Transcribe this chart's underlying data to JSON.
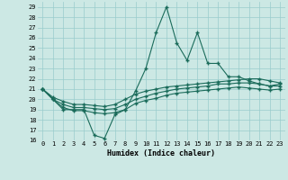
{
  "xlabel": "Humidex (Indice chaleur)",
  "ylabel": "",
  "bg_color": "#cce8e4",
  "grid_color": "#99cccc",
  "line_color": "#1a6b5a",
  "xlim": [
    -0.5,
    23.5
  ],
  "ylim": [
    16,
    29.5
  ],
  "yticks": [
    16,
    17,
    18,
    19,
    20,
    21,
    22,
    23,
    24,
    25,
    26,
    27,
    28,
    29
  ],
  "xticks": [
    0,
    1,
    2,
    3,
    4,
    5,
    6,
    7,
    8,
    9,
    10,
    11,
    12,
    13,
    14,
    15,
    16,
    17,
    18,
    19,
    20,
    21,
    22,
    23
  ],
  "series1": [
    21.0,
    20.0,
    19.0,
    19.0,
    19.0,
    16.5,
    16.2,
    18.5,
    19.0,
    20.8,
    23.0,
    26.5,
    29.0,
    25.5,
    23.8,
    26.5,
    23.5,
    23.5,
    22.2,
    22.2,
    21.8,
    21.5,
    21.3,
    21.5
  ],
  "series2": [
    21.0,
    20.2,
    19.8,
    19.5,
    19.5,
    19.4,
    19.3,
    19.5,
    20.0,
    20.5,
    20.8,
    21.0,
    21.2,
    21.3,
    21.4,
    21.5,
    21.6,
    21.7,
    21.8,
    21.9,
    22.0,
    22.0,
    21.8,
    21.6
  ],
  "series3": [
    21.0,
    20.0,
    19.5,
    19.2,
    19.2,
    19.1,
    19.0,
    19.1,
    19.5,
    20.0,
    20.3,
    20.6,
    20.8,
    21.0,
    21.1,
    21.2,
    21.3,
    21.5,
    21.5,
    21.6,
    21.6,
    21.5,
    21.3,
    21.3
  ],
  "series4": [
    21.0,
    20.0,
    19.2,
    18.9,
    18.9,
    18.7,
    18.6,
    18.7,
    19.0,
    19.6,
    19.9,
    20.1,
    20.4,
    20.6,
    20.7,
    20.8,
    20.9,
    21.0,
    21.1,
    21.2,
    21.1,
    21.0,
    20.9,
    21.0
  ]
}
